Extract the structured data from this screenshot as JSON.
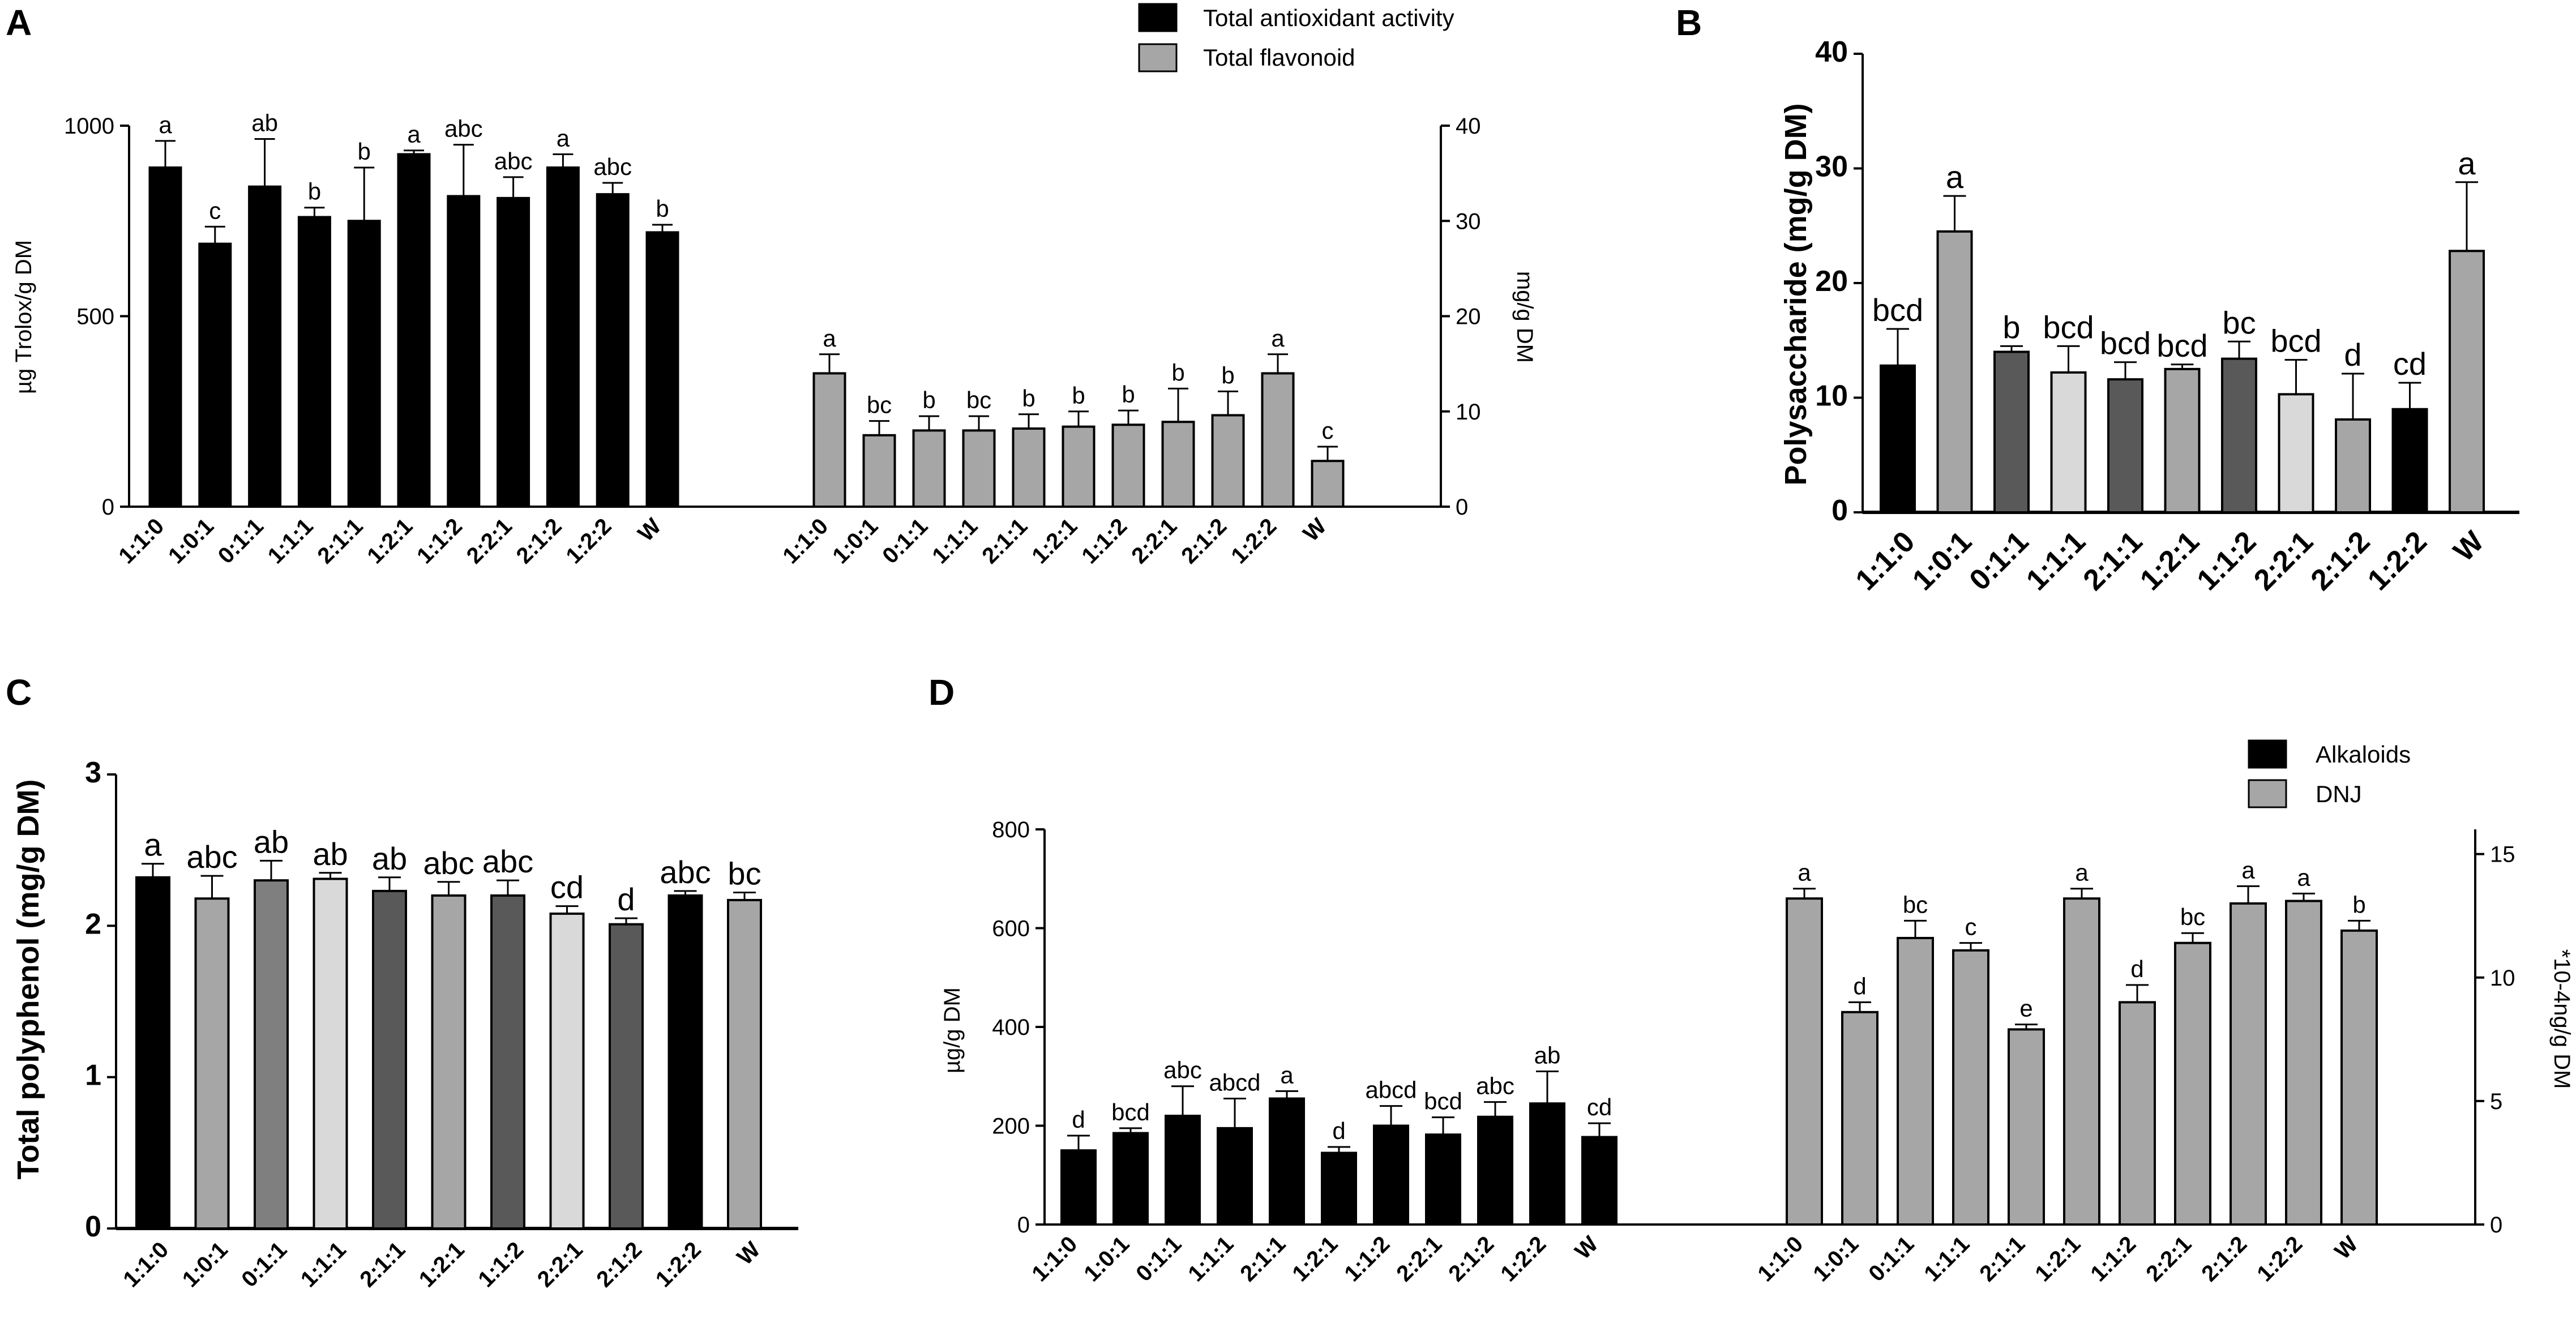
{
  "colors": {
    "black": "#000000",
    "gray": "#a6a6a6",
    "light": "#d9d9d9",
    "dark": "#595959",
    "mid": "#7f7f7f"
  },
  "chart_data": [
    {
      "panel": "A",
      "type": "bar",
      "categories": [
        "1:1:0",
        "1:0:1",
        "0:1:1",
        "1:1:1",
        "2:1:1",
        "1:2:1",
        "1:1:2",
        "2:2:1",
        "2:1:2",
        "1:2:2",
        "W"
      ],
      "series": [
        {
          "name": "Total antioxidant activity",
          "axis": "left",
          "color": "#000000",
          "values": [
            890,
            690,
            840,
            760,
            750,
            925,
            815,
            810,
            890,
            820,
            720
          ],
          "errors": [
            70,
            45,
            125,
            25,
            140,
            10,
            135,
            55,
            35,
            30,
            20
          ],
          "letters": [
            "a",
            "c",
            "ab",
            "b",
            "b",
            "a",
            "abc",
            "abc",
            "a",
            "abc",
            "b"
          ]
        },
        {
          "name": "Total flavonoid",
          "axis": "right",
          "color": "#a6a6a6",
          "values": [
            14,
            7.5,
            8,
            8,
            8.2,
            8.4,
            8.6,
            8.9,
            9.6,
            14,
            4.8
          ],
          "errors": [
            2,
            1.5,
            1.5,
            1.5,
            1.5,
            1.6,
            1.5,
            3.5,
            2.5,
            2,
            1.5
          ],
          "letters": [
            "a",
            "bc",
            "b",
            "bc",
            "b",
            "b",
            "b",
            "b",
            "b",
            "a",
            "c"
          ]
        }
      ],
      "ylabel": "µg Trolox/g DM",
      "ylim": [
        0,
        1000
      ],
      "yticks": [
        "0",
        "500",
        "1000"
      ],
      "y2label": "mg/g DM",
      "y2lim": [
        0,
        40
      ],
      "y2ticks": [
        "0",
        "10",
        "20",
        "30",
        "40"
      ],
      "legend": [
        "Total antioxidant activity",
        "Total flavonoid"
      ]
    },
    {
      "panel": "B",
      "type": "bar",
      "categories": [
        "1:1:0",
        "1:0:1",
        "0:1:1",
        "1:1:1",
        "2:1:1",
        "1:2:1",
        "1:1:2",
        "2:2:1",
        "2:1:2",
        "1:2:2",
        "W"
      ],
      "values": [
        12.8,
        24.5,
        14,
        12.2,
        11.6,
        12.5,
        13.4,
        10.3,
        8.1,
        9,
        22.8
      ],
      "errors": [
        3.2,
        3.1,
        0.5,
        2.3,
        1.5,
        0.4,
        1.5,
        3,
        4,
        2.3,
        6
      ],
      "colors": [
        "#000000",
        "#a6a6a6",
        "#595959",
        "#d9d9d9",
        "#595959",
        "#a6a6a6",
        "#595959",
        "#d9d9d9",
        "#a6a6a6",
        "#000000",
        "#a6a6a6"
      ],
      "letters": [
        "bcd",
        "a",
        "b",
        "bcd",
        "bcd",
        "bcd",
        "bc",
        "bcd",
        "d",
        "cd",
        "a"
      ],
      "ylabel": "Polysaccharide (mg/g DM)",
      "ylim": [
        0,
        40
      ],
      "yticks": [
        "0",
        "10",
        "20",
        "30",
        "40"
      ]
    },
    {
      "panel": "C",
      "type": "bar",
      "categories": [
        "1:1:0",
        "1:0:1",
        "0:1:1",
        "1:1:1",
        "2:1:1",
        "1:2:1",
        "1:1:2",
        "2:2:1",
        "2:1:2",
        "1:2:2",
        "W"
      ],
      "values": [
        2.32,
        2.18,
        2.3,
        2.31,
        2.23,
        2.2,
        2.2,
        2.08,
        2.01,
        2.2,
        2.17
      ],
      "errors": [
        0.09,
        0.15,
        0.13,
        0.04,
        0.09,
        0.09,
        0.1,
        0.05,
        0.04,
        0.03,
        0.05
      ],
      "colors": [
        "#000000",
        "#a6a6a6",
        "#7f7f7f",
        "#d9d9d9",
        "#595959",
        "#a6a6a6",
        "#595959",
        "#d9d9d9",
        "#595959",
        "#000000",
        "#a6a6a6"
      ],
      "letters": [
        "a",
        "abc",
        "ab",
        "ab",
        "ab",
        "abc",
        "abc",
        "cd",
        "d",
        "abc",
        "bc"
      ],
      "ylabel": "Total polyphenol (mg/g DM)",
      "ylim": [
        0,
        3
      ],
      "yticks": [
        "0",
        "1",
        "2",
        "3"
      ]
    },
    {
      "panel": "D",
      "type": "bar",
      "categories": [
        "1:1:0",
        "1:0:1",
        "0:1:1",
        "1:1:1",
        "2:1:1",
        "1:2:1",
        "1:1:2",
        "2:2:1",
        "2:1:2",
        "1:2:2",
        "W"
      ],
      "series": [
        {
          "name": "Alkaloids",
          "axis": "left",
          "color": "#000000",
          "values": [
            150,
            185,
            220,
            195,
            255,
            145,
            200,
            182,
            218,
            245,
            177
          ],
          "errors": [
            30,
            10,
            60,
            60,
            15,
            12,
            40,
            35,
            30,
            65,
            28
          ],
          "letters": [
            "d",
            "bcd",
            "abc",
            "abcd",
            "a",
            "d",
            "abcd",
            "bcd",
            "abc",
            "ab",
            "cd"
          ]
        },
        {
          "name": "DNJ",
          "axis": "right",
          "color": "#a6a6a6",
          "values": [
            13.2,
            8.6,
            11.6,
            11.1,
            7.9,
            13.2,
            9,
            11.4,
            13,
            13.1,
            11.9
          ],
          "errors": [
            0.4,
            0.4,
            0.7,
            0.3,
            0.2,
            0.4,
            0.7,
            0.4,
            0.7,
            0.3,
            0.4
          ],
          "letters": [
            "a",
            "d",
            "bc",
            "c",
            "e",
            "a",
            "d",
            "bc",
            "a",
            "a",
            "b"
          ]
        }
      ],
      "ylabel": "µg/g DM",
      "ylim": [
        0,
        800
      ],
      "yticks": [
        "0",
        "200",
        "400",
        "600",
        "800"
      ],
      "y2label": "*10-4ng/g DM",
      "y2lim": [
        0,
        16
      ],
      "y2ticks": [
        "0",
        "5",
        "10",
        "15"
      ],
      "legend": [
        "Alkaloids",
        "DNJ"
      ]
    }
  ]
}
